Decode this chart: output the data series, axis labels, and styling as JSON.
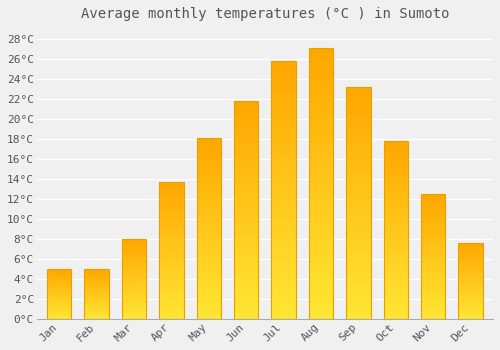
{
  "title": "Average monthly temperatures (°C ) in Sumoto",
  "months": [
    "Jan",
    "Feb",
    "Mar",
    "Apr",
    "May",
    "Jun",
    "Jul",
    "Aug",
    "Sep",
    "Oct",
    "Nov",
    "Dec"
  ],
  "temperatures": [
    5.0,
    5.0,
    8.0,
    13.7,
    18.1,
    21.8,
    25.8,
    27.1,
    23.2,
    17.8,
    12.5,
    7.6
  ],
  "bar_color_top": "#FFD966",
  "bar_color_bottom": "#FFA500",
  "background_color": "#F0F0F0",
  "plot_bg_color": "#F0F0F0",
  "grid_color": "#FFFFFF",
  "text_color": "#555555",
  "ylim": [
    0,
    29
  ],
  "ytick_step": 2,
  "title_fontsize": 10,
  "tick_fontsize": 8
}
